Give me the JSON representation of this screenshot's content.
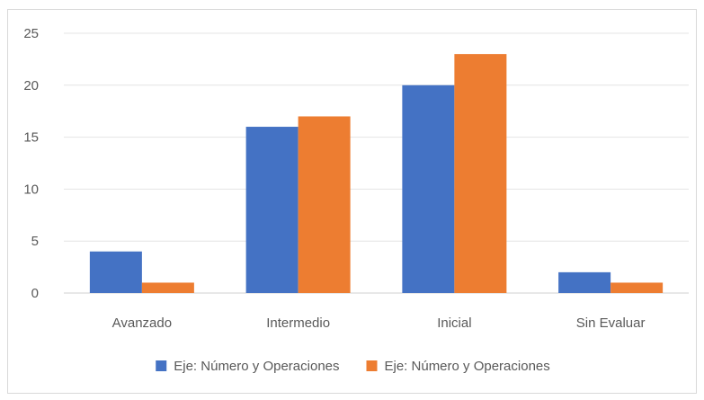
{
  "chart_data": {
    "type": "bar",
    "categories": [
      "Avanzado",
      "Intermedio",
      "Inicial",
      "Sin Evaluar"
    ],
    "series": [
      {
        "name": "Eje: Número y Operaciones",
        "values": [
          4,
          16,
          20,
          2
        ],
        "color": "#4472C4"
      },
      {
        "name": "Eje: Número y Operaciones",
        "values": [
          1,
          17,
          23,
          1
        ],
        "color": "#ED7D31"
      }
    ],
    "ylim": [
      0,
      25
    ],
    "yticks": [
      0,
      5,
      10,
      15,
      20,
      25
    ],
    "grid": true,
    "legend_position": "bottom",
    "title": "",
    "xlabel": "",
    "ylabel": ""
  }
}
